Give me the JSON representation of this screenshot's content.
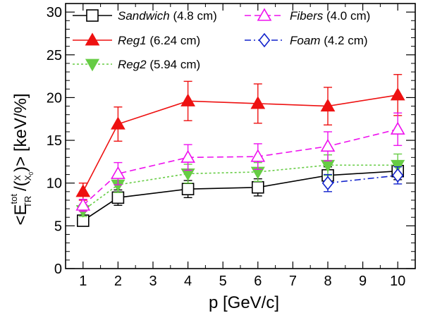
{
  "chart_data": {
    "type": "line",
    "xlabel": "p [GeV/c]",
    "ylabel_parts": {
      "lead": "<E",
      "sup": "tot",
      "sub": "TR",
      "mid": " /(",
      "frac_num": "X",
      "frac_den": "X",
      "frac_den_sub": "0",
      "tail": ")> [keV/%]"
    },
    "xlim": [
      0.5,
      10.5
    ],
    "ylim": [
      0,
      31
    ],
    "x_ticks": [
      "1",
      "2",
      "3",
      "4",
      "5",
      "6",
      "7",
      "8",
      "9",
      "10"
    ],
    "y_ticks": [
      "0",
      "5",
      "10",
      "15",
      "20",
      "25",
      "30"
    ],
    "series": [
      {
        "name": "Sandwich",
        "suffix": " (4.8 cm)",
        "color": "#000000",
        "marker": "open-square",
        "dash": "solid",
        "x": [
          1,
          2,
          4,
          6,
          8,
          10
        ],
        "y": [
          5.6,
          8.3,
          9.3,
          9.5,
          10.9,
          11.4
        ],
        "err": [
          0.5,
          0.9,
          1.0,
          1.0,
          1.0,
          1.0
        ]
      },
      {
        "name": "Reg1",
        "suffix": " (6.24 cm)",
        "color": "#ee1111",
        "marker": "filled-triangle-up",
        "dash": "solid",
        "x": [
          1,
          2,
          4,
          6,
          8,
          10
        ],
        "y": [
          9.0,
          16.9,
          19.6,
          19.3,
          19.0,
          20.3
        ],
        "err": [
          1.0,
          2.0,
          2.3,
          2.3,
          2.2,
          2.4
        ]
      },
      {
        "name": "Reg2",
        "suffix": " (5.94 cm)",
        "color": "#66cc44",
        "marker": "filled-triangle-down",
        "dash": "dotted",
        "x": [
          1,
          2,
          4,
          6,
          8,
          10
        ],
        "y": [
          6.8,
          9.8,
          11.1,
          11.3,
          12.1,
          12.1
        ],
        "err": [
          0.7,
          0.9,
          1.1,
          1.1,
          1.2,
          1.3
        ]
      },
      {
        "name": "Fibers",
        "suffix": " (4.0 cm)",
        "color": "#ee11ee",
        "marker": "open-triangle-up",
        "dash": "dashed",
        "x": [
          1,
          2,
          4,
          6,
          8,
          10
        ],
        "y": [
          7.4,
          11.1,
          13.0,
          13.1,
          14.3,
          16.3
        ],
        "err": [
          0.7,
          1.3,
          1.5,
          1.5,
          1.7,
          1.9
        ]
      },
      {
        "name": "Foam",
        "suffix": " (4.2 cm)",
        "color": "#1122cc",
        "marker": "open-diamond",
        "dash": "dashdot",
        "x": [
          8,
          10
        ],
        "y": [
          10.0,
          10.9
        ],
        "err": [
          1.0,
          1.0
        ]
      }
    ],
    "legend": {
      "placement": "top",
      "columns": 2
    },
    "grid": false
  }
}
